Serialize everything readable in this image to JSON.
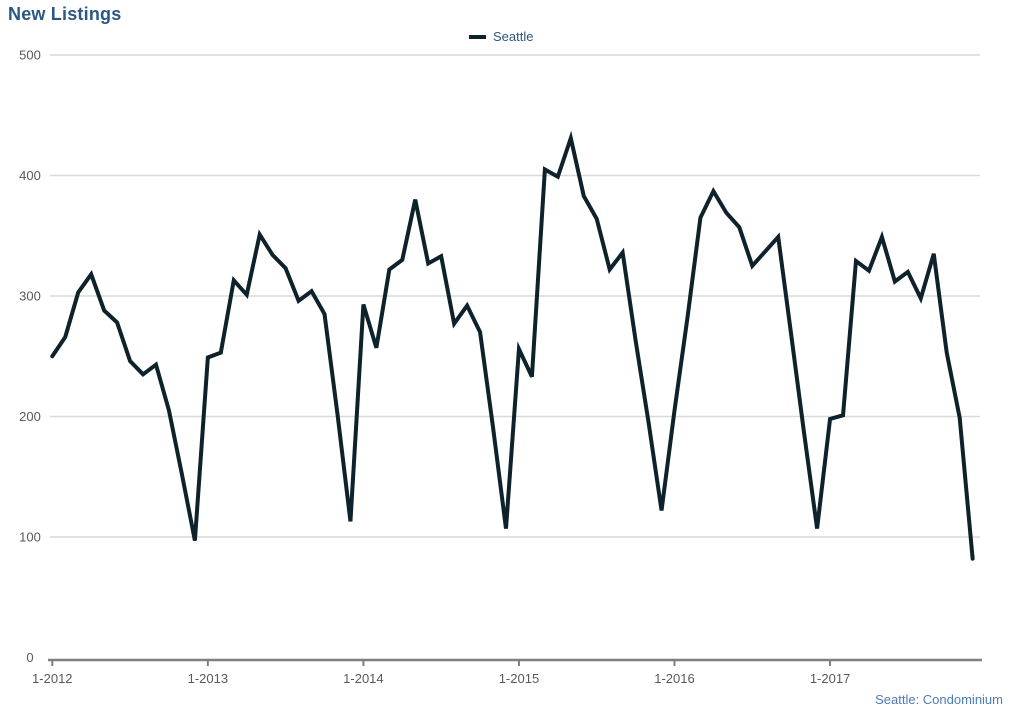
{
  "page": {
    "title": "New Listings",
    "footer": "Seattle: Condominium"
  },
  "legend": {
    "series_label": "Seattle"
  },
  "colors": {
    "title_text": "#2a5783",
    "legend_text": "#2a5783",
    "footer_text": "#4e7cb3",
    "series_line": "#0e222b",
    "gridline": "#d9d9d9",
    "axis_line": "#7f7f7f",
    "tick_text": "#595959"
  },
  "chart_data": {
    "type": "line",
    "title": "New Listings",
    "legend_position": "top-center",
    "grid": "horizontal",
    "ylim": [
      0,
      500
    ],
    "y_ticks": [
      500,
      400,
      300,
      200,
      100,
      0
    ],
    "x_tick_labels": [
      "1-2012",
      "1-2013",
      "1-2014",
      "1-2015",
      "1-2016",
      "1-2017"
    ],
    "x_start_month": "1-2012",
    "x_interval": "monthly",
    "series": [
      {
        "name": "Seattle",
        "values": [
          250,
          266,
          303,
          318,
          288,
          278,
          246,
          235,
          243,
          205,
          152,
          97,
          249,
          253,
          313,
          301,
          351,
          334,
          323,
          296,
          304,
          285,
          202,
          113,
          293,
          257,
          322,
          330,
          380,
          327,
          333,
          277,
          292,
          270,
          191,
          107,
          256,
          233,
          405,
          399,
          431,
          383,
          364,
          322,
          336,
          263,
          195,
          122,
          205,
          282,
          365,
          387,
          369,
          357,
          325,
          337,
          349,
          268,
          186,
          107,
          198,
          201,
          329,
          321,
          349,
          312,
          320,
          298,
          335,
          253,
          199,
          82
        ]
      }
    ]
  }
}
